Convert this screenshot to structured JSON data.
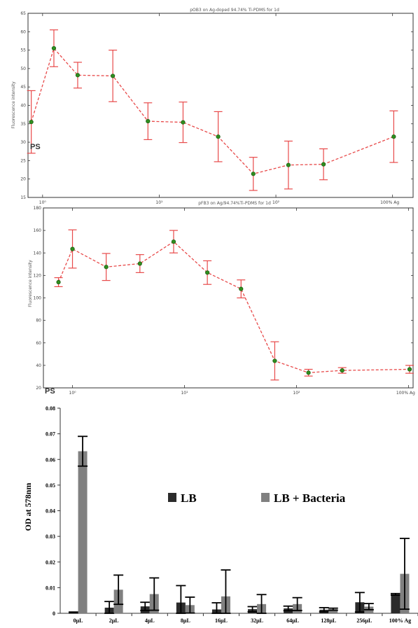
{
  "colors": {
    "line": "#e84a4a",
    "marker_fill": "#2f8f1f",
    "marker_edge": "#1d5e12",
    "lb": "#2b2b2b",
    "lb_bacteria": "#808080"
  },
  "chart_data": [
    {
      "type": "line",
      "title": "pOB3 on Ag-doped 94.74% Ti-PDMS for 1d",
      "ylabel": "Fluorescence intensity",
      "xscale": "log",
      "xlim": [
        0.75,
        1500
      ],
      "ylim": [
        15,
        65
      ],
      "yticks": [
        15,
        20,
        25,
        30,
        35,
        40,
        45,
        50,
        55,
        60,
        65
      ],
      "xticks": [
        {
          "value": 1,
          "label": "10⁰"
        },
        {
          "value": 10,
          "label": "10¹"
        },
        {
          "value": 100,
          "label": "10²"
        },
        {
          "value": 1000,
          "label": "100% Ag"
        }
      ],
      "annotation": "PS",
      "grid": false,
      "points": [
        {
          "x": 0.8,
          "y": 35.5,
          "err": 8.5
        },
        {
          "x": 1.25,
          "y": 55.5,
          "err": 5
        },
        {
          "x": 2,
          "y": 48.2,
          "err": 3.5
        },
        {
          "x": 4,
          "y": 48,
          "err": 7
        },
        {
          "x": 8,
          "y": 35.7,
          "err": 5
        },
        {
          "x": 16,
          "y": 35.4,
          "err": 5.5
        },
        {
          "x": 32,
          "y": 31.5,
          "err": 6.8
        },
        {
          "x": 64,
          "y": 21.4,
          "err": 4.5
        },
        {
          "x": 128,
          "y": 23.8,
          "err": 6.5
        },
        {
          "x": 256,
          "y": 24,
          "err": 4.2
        },
        {
          "x": 1024,
          "y": 31.5,
          "err": 7
        }
      ]
    },
    {
      "type": "line",
      "title": "pFB3 on Ag/94.74%Ti-PDMS for 1d",
      "ylabel": "Fluorescence intensity",
      "xscale": "log",
      "xlim": [
        0.55,
        1100
      ],
      "ylim": [
        20,
        180
      ],
      "yticks": [
        20,
        40,
        60,
        80,
        100,
        120,
        140,
        160,
        180
      ],
      "xticks": [
        {
          "value": 1,
          "label": "10⁰"
        },
        {
          "value": 10,
          "label": "10¹"
        },
        {
          "value": 100,
          "label": "10²"
        },
        {
          "value": 1000,
          "label": "100% Ag"
        }
      ],
      "annotation": "PS",
      "grid": false,
      "points": [
        {
          "x": 0.75,
          "y": 114,
          "err": 4
        },
        {
          "x": 1,
          "y": 143.5,
          "err": 17
        },
        {
          "x": 2,
          "y": 127.5,
          "err": 12
        },
        {
          "x": 4,
          "y": 130.5,
          "err": 8
        },
        {
          "x": 8,
          "y": 150,
          "err": 10
        },
        {
          "x": 16,
          "y": 122.5,
          "err": 10.5
        },
        {
          "x": 32,
          "y": 108,
          "err": 8
        },
        {
          "x": 64,
          "y": 44,
          "err": 17
        },
        {
          "x": 128,
          "y": 33.5,
          "err": 3
        },
        {
          "x": 256,
          "y": 35.5,
          "err": 2.5
        },
        {
          "x": 1024,
          "y": 36.5,
          "err": 3.5
        }
      ]
    },
    {
      "type": "bar",
      "ylabel": "OD at 578nm",
      "xlabel": "",
      "ylim": [
        0,
        0.08
      ],
      "yticks": [
        "0",
        "0.01",
        "0.02",
        "0.03",
        "0.04",
        "0.05",
        "0.06",
        "0.07",
        "0.08"
      ],
      "legend_placement": "center",
      "grid": false,
      "categories": [
        "0μL",
        "2μL",
        "4μL",
        "8μL",
        "16μL",
        "32μL",
        "64μL",
        "128μL",
        "256μL",
        "100% Ag"
      ],
      "series": [
        {
          "name": "LB",
          "values": [
            0.0003,
            0.0022,
            0.0027,
            0.0042,
            0.0015,
            0.0016,
            0.0019,
            0.0014,
            0.0043,
            0.0074
          ],
          "errors": [
            0.0002,
            0.0024,
            0.0016,
            0.0066,
            0.0026,
            0.001,
            0.0009,
            0.0008,
            0.0038,
            0.0003
          ]
        },
        {
          "name": "LB + Bacteria",
          "values": [
            0.0632,
            0.0092,
            0.0075,
            0.0032,
            0.0066,
            0.0036,
            0.0036,
            0.0016,
            0.0026,
            0.0154
          ],
          "errors": [
            0.0058,
            0.0057,
            0.0063,
            0.0031,
            0.0103,
            0.0037,
            0.0025,
            0.0004,
            0.0012,
            0.0138
          ]
        }
      ]
    }
  ]
}
